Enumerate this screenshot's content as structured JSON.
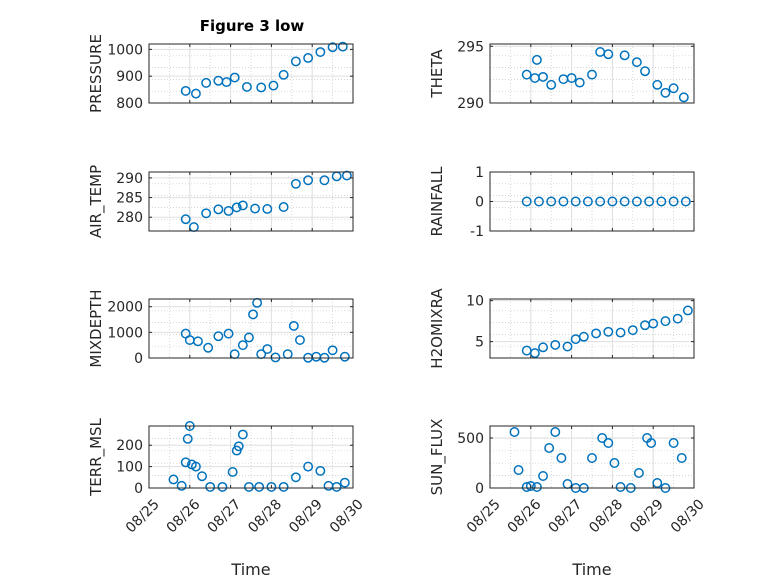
{
  "figure": {
    "title": "Figure 3 low"
  },
  "colors": {
    "series": "#0072BD",
    "axes": "#262626"
  },
  "chart_data": [
    {
      "type": "scatter",
      "title": "Figure 3 low",
      "ylabel": "PRESSURE",
      "xlabel": "",
      "ylim": [
        800,
        1020
      ],
      "yticks": [
        800,
        900,
        1000
      ],
      "ytick_labels": [
        "800",
        "900",
        "1000"
      ],
      "xlim": [
        0,
        5
      ],
      "xticks": [
        0,
        1,
        2,
        3,
        4,
        5
      ],
      "xtick_labels": [
        "08/25",
        "08/26",
        "08/27",
        "08/28",
        "08/29",
        "08/30"
      ],
      "show_xticklabels": false,
      "grid": true,
      "marker": "o",
      "series": [
        {
          "x": [
            0.9,
            1.15,
            1.4,
            1.7,
            1.9,
            2.1,
            2.4,
            2.75,
            3.05,
            3.3,
            3.6,
            3.9,
            4.2,
            4.5,
            4.75
          ],
          "y": [
            845,
            835,
            875,
            883,
            878,
            895,
            860,
            858,
            865,
            905,
            955,
            968,
            990,
            1008,
            1010
          ]
        }
      ]
    },
    {
      "type": "scatter",
      "title": "",
      "ylabel": "THETA",
      "xlabel": "",
      "ylim": [
        290,
        295.2
      ],
      "yticks": [
        290,
        295
      ],
      "ytick_labels": [
        "290",
        "295"
      ],
      "xlim": [
        0,
        5
      ],
      "xticks": [
        0,
        1,
        2,
        3,
        4,
        5
      ],
      "xtick_labels": [
        "08/25",
        "08/26",
        "08/27",
        "08/28",
        "08/29",
        "08/30"
      ],
      "show_xticklabels": false,
      "grid": true,
      "marker": "o",
      "series": [
        {
          "x": [
            0.9,
            1.1,
            1.15,
            1.3,
            1.5,
            1.8,
            2.0,
            2.2,
            2.5,
            2.7,
            2.9,
            3.3,
            3.6,
            3.8,
            4.1,
            4.3,
            4.5,
            4.75
          ],
          "y": [
            292.5,
            292.2,
            293.8,
            292.3,
            291.6,
            292.1,
            292.2,
            291.8,
            292.5,
            294.5,
            294.3,
            294.2,
            293.6,
            292.8,
            291.6,
            290.9,
            291.3,
            290.5
          ]
        }
      ]
    },
    {
      "type": "scatter",
      "title": "",
      "ylabel": "AIR_TEMP",
      "xlabel": "",
      "ylim": [
        276.5,
        291.5
      ],
      "yticks": [
        280,
        285,
        290
      ],
      "ytick_labels": [
        "280",
        "285",
        "290"
      ],
      "xlim": [
        0,
        5
      ],
      "xticks": [
        0,
        1,
        2,
        3,
        4,
        5
      ],
      "xtick_labels": [
        "08/25",
        "08/26",
        "08/27",
        "08/28",
        "08/29",
        "08/30"
      ],
      "show_xticklabels": false,
      "grid": true,
      "marker": "o",
      "series": [
        {
          "x": [
            0.9,
            1.1,
            1.4,
            1.7,
            1.95,
            2.15,
            2.3,
            2.6,
            2.9,
            3.3,
            3.6,
            3.9,
            4.3,
            4.6,
            4.85
          ],
          "y": [
            279.5,
            277.5,
            281.0,
            282.0,
            281.6,
            282.5,
            283.0,
            282.2,
            282.1,
            282.6,
            288.5,
            289.4,
            289.4,
            290.4,
            290.6
          ]
        }
      ]
    },
    {
      "type": "scatter",
      "title": "",
      "ylabel": "RAINFALL",
      "xlabel": "",
      "ylim": [
        -1,
        1
      ],
      "yticks": [
        -1,
        0,
        1
      ],
      "ytick_labels": [
        "-1",
        "0",
        "1"
      ],
      "xlim": [
        0,
        5
      ],
      "xticks": [
        0,
        1,
        2,
        3,
        4,
        5
      ],
      "xtick_labels": [
        "08/25",
        "08/26",
        "08/27",
        "08/28",
        "08/29",
        "08/30"
      ],
      "show_xticklabels": false,
      "grid": true,
      "marker": "o",
      "series": [
        {
          "x": [
            0.9,
            1.2,
            1.5,
            1.8,
            2.1,
            2.4,
            2.7,
            3.0,
            3.3,
            3.6,
            3.9,
            4.2,
            4.5,
            4.8
          ],
          "y": [
            0,
            0,
            0,
            0,
            0,
            0,
            0,
            0,
            0,
            0,
            0,
            0,
            0,
            0
          ]
        }
      ]
    },
    {
      "type": "scatter",
      "title": "",
      "ylabel": "MIXDEPTH",
      "xlabel": "",
      "ylim": [
        0,
        2300
      ],
      "yticks": [
        0,
        1000,
        2000
      ],
      "ytick_labels": [
        "0",
        "1000",
        "2000"
      ],
      "xlim": [
        0,
        5
      ],
      "xticks": [
        0,
        1,
        2,
        3,
        4,
        5
      ],
      "xtick_labels": [
        "08/25",
        "08/26",
        "08/27",
        "08/28",
        "08/29",
        "08/30"
      ],
      "show_xticklabels": false,
      "grid": true,
      "marker": "o",
      "series": [
        {
          "x": [
            0.9,
            1.0,
            1.2,
            1.45,
            1.7,
            1.95,
            2.1,
            2.3,
            2.45,
            2.55,
            2.65,
            2.75,
            2.9,
            3.1,
            3.4,
            3.55,
            3.7,
            3.9,
            4.1,
            4.3,
            4.5,
            4.8
          ],
          "y": [
            950,
            700,
            650,
            400,
            850,
            950,
            150,
            500,
            800,
            1700,
            2150,
            150,
            350,
            20,
            150,
            1250,
            700,
            10,
            50,
            10,
            300,
            50
          ]
        }
      ]
    },
    {
      "type": "scatter",
      "title": "",
      "ylabel": "H2OMIXRA",
      "xlabel": "",
      "ylim": [
        3,
        10.2
      ],
      "yticks": [
        5,
        10
      ],
      "ytick_labels": [
        "5",
        "10"
      ],
      "xlim": [
        0,
        5
      ],
      "xticks": [
        0,
        1,
        2,
        3,
        4,
        5
      ],
      "xtick_labels": [
        "08/25",
        "08/26",
        "08/27",
        "08/28",
        "08/29",
        "08/30"
      ],
      "show_xticklabels": false,
      "grid": true,
      "marker": "o",
      "series": [
        {
          "x": [
            0.9,
            1.1,
            1.3,
            1.6,
            1.9,
            2.1,
            2.3,
            2.6,
            2.9,
            3.2,
            3.5,
            3.8,
            4.0,
            4.3,
            4.6,
            4.85
          ],
          "y": [
            3.9,
            3.6,
            4.3,
            4.6,
            4.4,
            5.3,
            5.6,
            6.0,
            6.2,
            6.1,
            6.4,
            7.0,
            7.2,
            7.5,
            7.8,
            8.8
          ]
        }
      ]
    },
    {
      "type": "scatter",
      "title": "",
      "ylabel": "TERR_MSL",
      "xlabel": "Time",
      "ylim": [
        0,
        290
      ],
      "yticks": [
        0,
        100,
        200
      ],
      "ytick_labels": [
        "0",
        "100",
        "200"
      ],
      "xlim": [
        0,
        5
      ],
      "xticks": [
        0,
        1,
        2,
        3,
        4,
        5
      ],
      "xtick_labels": [
        "08/25",
        "08/26",
        "08/27",
        "08/28",
        "08/29",
        "08/30"
      ],
      "show_xticklabels": true,
      "grid": true,
      "marker": "o",
      "series": [
        {
          "x": [
            0.6,
            0.8,
            0.9,
            0.95,
            1.0,
            1.05,
            1.15,
            1.3,
            1.5,
            1.8,
            2.05,
            2.15,
            2.2,
            2.3,
            2.45,
            2.7,
            3.0,
            3.3,
            3.6,
            3.9,
            4.2,
            4.4,
            4.6,
            4.8
          ],
          "y": [
            40,
            10,
            120,
            230,
            290,
            110,
            100,
            55,
            5,
            5,
            75,
            175,
            195,
            250,
            5,
            5,
            5,
            5,
            50,
            100,
            80,
            10,
            5,
            25
          ]
        }
      ]
    },
    {
      "type": "scatter",
      "title": "",
      "ylabel": "SUN_FLUX",
      "xlabel": "Time",
      "ylim": [
        0,
        620
      ],
      "yticks": [
        0,
        500
      ],
      "ytick_labels": [
        "0",
        "500"
      ],
      "xlim": [
        0,
        5
      ],
      "xticks": [
        0,
        1,
        2,
        3,
        4,
        5
      ],
      "xtick_labels": [
        "08/25",
        "08/26",
        "08/27",
        "08/28",
        "08/29",
        "08/30"
      ],
      "show_xticklabels": true,
      "grid": true,
      "marker": "o",
      "series": [
        {
          "x": [
            0.6,
            0.7,
            0.9,
            1.0,
            1.15,
            1.3,
            1.45,
            1.6,
            1.75,
            1.9,
            2.1,
            2.3,
            2.5,
            2.75,
            2.9,
            3.05,
            3.2,
            3.45,
            3.65,
            3.85,
            3.95,
            4.1,
            4.3,
            4.5,
            4.7
          ],
          "y": [
            560,
            180,
            10,
            20,
            10,
            120,
            400,
            560,
            300,
            40,
            0,
            0,
            300,
            500,
            450,
            250,
            10,
            0,
            150,
            500,
            450,
            50,
            0,
            450,
            300
          ]
        }
      ]
    }
  ]
}
